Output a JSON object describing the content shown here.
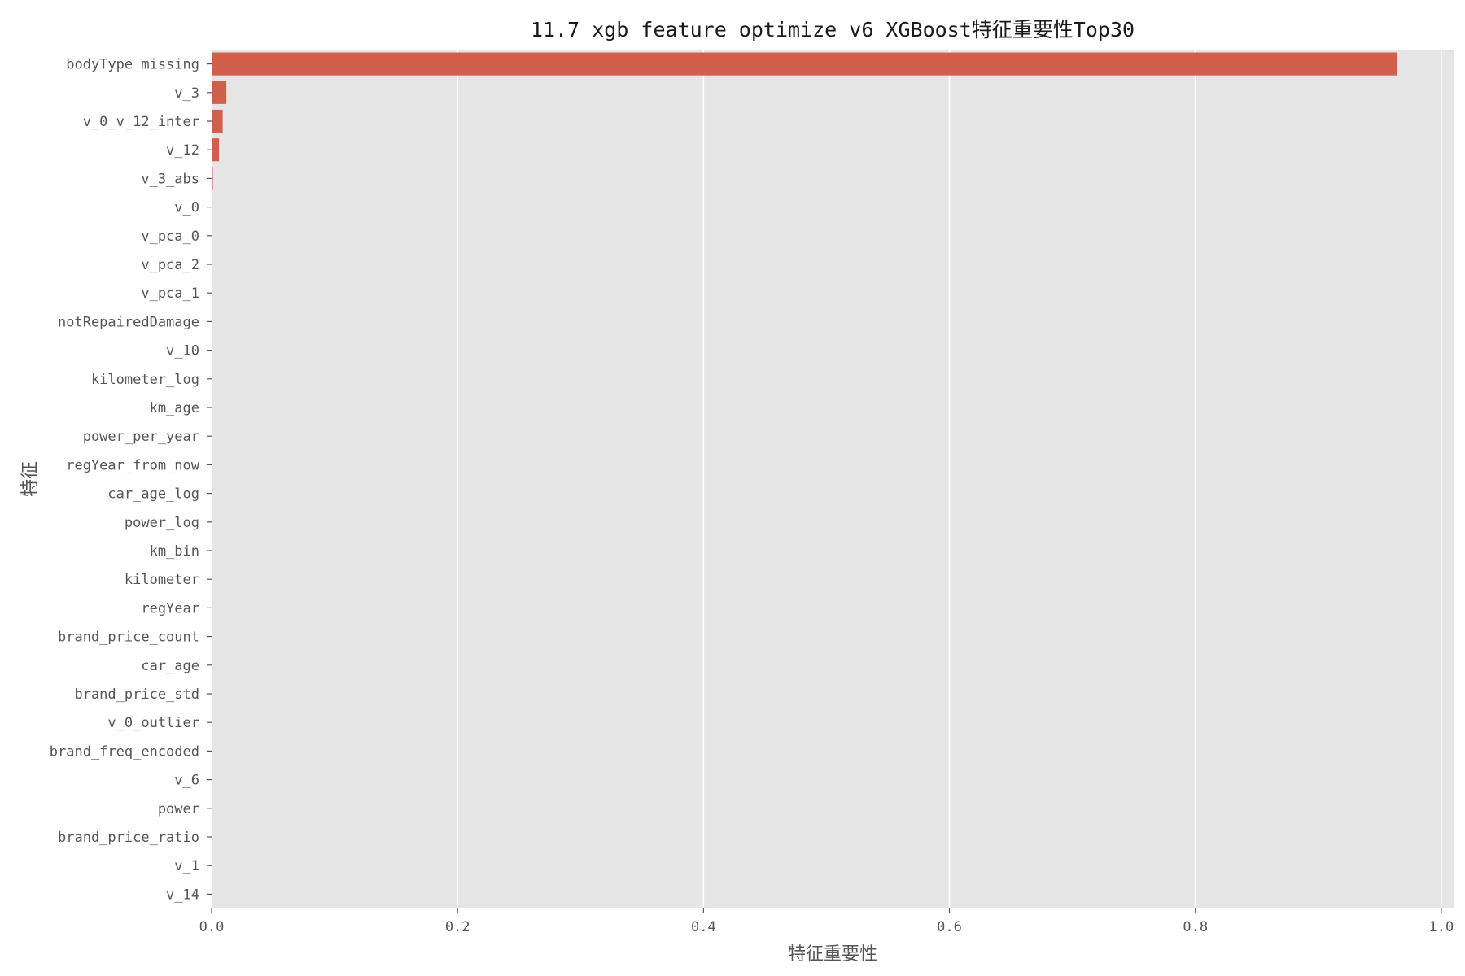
{
  "chart_data": {
    "type": "bar",
    "orientation": "horizontal",
    "title": "11.7_xgb_feature_optimize_v6_XGBoost特征重要性Top30",
    "xlabel": "特征重要性",
    "ylabel": "特征",
    "xlim": [
      0,
      1.01
    ],
    "xticks": [
      0.0,
      0.2,
      0.4,
      0.6,
      0.8,
      1.0
    ],
    "xtick_labels": [
      "0.0",
      "0.2",
      "0.4",
      "0.6",
      "0.8",
      "1.0"
    ],
    "grid": true,
    "bar_color": "#d0604c",
    "background_color": "#e5e5e5",
    "categories": [
      "bodyType_missing",
      "v_3",
      "v_0_v_12_inter",
      "v_12",
      "v_3_abs",
      "v_0",
      "v_pca_0",
      "v_pca_2",
      "v_pca_1",
      "notRepairedDamage",
      "v_10",
      "kilometer_log",
      "km_age",
      "power_per_year",
      "regYear_from_now",
      "car_age_log",
      "power_log",
      "km_bin",
      "kilometer",
      "regYear",
      "brand_price_count",
      "car_age",
      "brand_price_std",
      "v_0_outlier",
      "brand_freq_encoded",
      "v_6",
      "power",
      "brand_price_ratio",
      "v_1",
      "v_14"
    ],
    "values": [
      0.964,
      0.012,
      0.009,
      0.006,
      0.001,
      0.0003,
      0.0003,
      0.0002,
      0.0002,
      0.0002,
      0.0002,
      0.0001,
      0.0001,
      0.0001,
      0.0001,
      0.0001,
      0.0001,
      0.0001,
      0.0001,
      0.0001,
      0.0001,
      0.0001,
      0.0001,
      0.0001,
      0.0001,
      0.0001,
      0.0001,
      0.0001,
      0.0001,
      0.0001
    ]
  }
}
